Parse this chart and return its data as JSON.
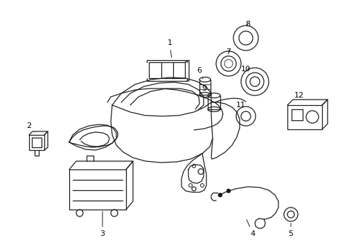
{
  "background_color": "#ffffff",
  "line_color": "#1a1a1a",
  "label_color": "#000000",
  "lw": 0.9
}
